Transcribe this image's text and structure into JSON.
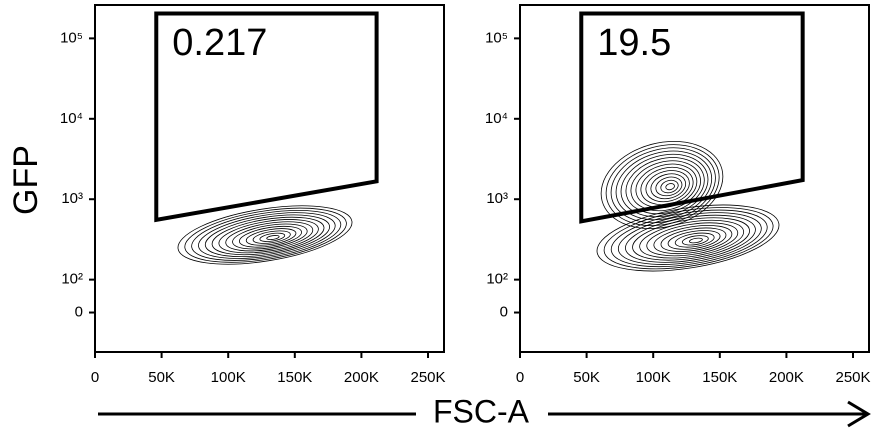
{
  "figure": {
    "x_label": "FSC-A",
    "y_label": "GFP"
  },
  "chart_data": [
    {
      "type": "contour",
      "yscale": "biexponential",
      "xlim": [
        0,
        262000
      ],
      "ylim": [
        -120,
        260000
      ],
      "xticks": [
        0,
        {
          "value": 50000,
          "label": "50K"
        },
        {
          "value": 100000,
          "label": "100K"
        },
        {
          "value": 150000,
          "label": "150K"
        },
        {
          "value": 200000,
          "label": "200K"
        },
        {
          "value": 250000,
          "label": "250K"
        }
      ],
      "yticks": [
        0,
        {
          "value": 100,
          "label": "10²"
        },
        {
          "value": 1000,
          "label": "10³"
        },
        {
          "value": 10000,
          "label": "10⁴"
        },
        {
          "value": 100000,
          "label": "10⁵"
        }
      ],
      "gate": {
        "x": [
          46000,
          211400,
          211400,
          46000
        ],
        "y": [
          204000,
          204000,
          1670,
          553
        ],
        "percent": 0.217
      }
    },
    {
      "type": "contour",
      "yscale": "biexponential",
      "xlim": [
        0,
        262000
      ],
      "ylim": [
        -120,
        260000
      ],
      "xticks": [
        0,
        {
          "value": 50000,
          "label": "50K"
        },
        {
          "value": 100000,
          "label": "100K"
        },
        {
          "value": 150000,
          "label": "150K"
        },
        {
          "value": 200000,
          "label": "200K"
        },
        {
          "value": 250000,
          "label": "250K"
        }
      ],
      "yticks": [
        0,
        {
          "value": 100,
          "label": "10²"
        },
        {
          "value": 1000,
          "label": "10³"
        },
        {
          "value": 10000,
          "label": "10⁴"
        },
        {
          "value": 100000,
          "label": "10⁵"
        }
      ],
      "gate": {
        "x": [
          46000,
          212200,
          212200,
          46000
        ],
        "y": [
          204000,
          204000,
          1730,
          530
        ],
        "percent": 19.5
      }
    }
  ]
}
